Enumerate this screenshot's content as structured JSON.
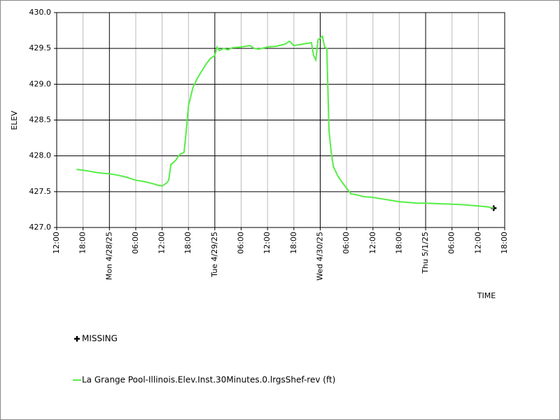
{
  "chart_data": {
    "type": "line",
    "x_label": "TIME",
    "y_label": "ELEV",
    "xlim": [
      "2025-04-27T12:00",
      "2025-05-01T18:00"
    ],
    "xticks": [
      {
        "value": "2025-04-27T12:00",
        "label": "12:00"
      },
      {
        "value": "2025-04-27T18:00",
        "label": "18:00"
      },
      {
        "value": "2025-04-28T00:00",
        "label": "Mon 4/28/25"
      },
      {
        "value": "2025-04-28T06:00",
        "label": "06:00"
      },
      {
        "value": "2025-04-28T12:00",
        "label": "12:00"
      },
      {
        "value": "2025-04-28T18:00",
        "label": "18:00"
      },
      {
        "value": "2025-04-29T00:00",
        "label": "Tue 4/29/25"
      },
      {
        "value": "2025-04-29T06:00",
        "label": "06:00"
      },
      {
        "value": "2025-04-29T12:00",
        "label": "12:00"
      },
      {
        "value": "2025-04-29T18:00",
        "label": "18:00"
      },
      {
        "value": "2025-04-30T00:00",
        "label": "Wed 4/30/25"
      },
      {
        "value": "2025-04-30T06:00",
        "label": "06:00"
      },
      {
        "value": "2025-04-30T12:00",
        "label": "12:00"
      },
      {
        "value": "2025-04-30T18:00",
        "label": "18:00"
      },
      {
        "value": "2025-05-01T00:00",
        "label": "Thu 5/1/25"
      },
      {
        "value": "2025-05-01T06:00",
        "label": "06:00"
      },
      {
        "value": "2025-05-01T12:00",
        "label": "12:00"
      },
      {
        "value": "2025-05-01T18:00",
        "label": "18:00"
      }
    ],
    "ylim": [
      427.0,
      430.0
    ],
    "yticks": [
      {
        "value": 427.0,
        "label": "427.0"
      },
      427.5,
      {
        "value": 428.0,
        "label": "428.0"
      },
      428.5,
      {
        "value": 429.0,
        "label": "429.0"
      },
      429.5,
      {
        "value": 430.0,
        "label": "430.0"
      }
    ],
    "grid": true,
    "series": [
      {
        "name": "MISSING",
        "color": "#000000",
        "marker": "cross",
        "x": [
          "2025-05-01T15:30"
        ],
        "values": [
          427.27
        ]
      },
      {
        "name": "La Grange Pool-Illinois.Elev.Inst.30Minutes.0.lrgsShef-rev (ft)",
        "color": "#55ee44",
        "x": [
          "2025-04-27T16:30",
          "2025-04-27T18:00",
          "2025-04-27T20:00",
          "2025-04-27T22:00",
          "2025-04-28T00:00",
          "2025-04-28T02:00",
          "2025-04-28T04:00",
          "2025-04-28T06:00",
          "2025-04-28T08:00",
          "2025-04-28T10:00",
          "2025-04-28T11:00",
          "2025-04-28T12:00",
          "2025-04-28T13:00",
          "2025-04-28T13:30",
          "2025-04-28T14:00",
          "2025-04-28T15:00",
          "2025-04-28T16:00",
          "2025-04-28T17:00",
          "2025-04-28T17:30",
          "2025-04-28T18:00",
          "2025-04-28T19:00",
          "2025-04-28T20:00",
          "2025-04-28T21:00",
          "2025-04-28T22:00",
          "2025-04-28T23:00",
          "2025-04-29T00:00",
          "2025-04-29T00:30",
          "2025-04-29T01:00",
          "2025-04-29T02:00",
          "2025-04-29T03:00",
          "2025-04-29T04:00",
          "2025-04-29T06:00",
          "2025-04-29T08:00",
          "2025-04-29T09:00",
          "2025-04-29T10:00",
          "2025-04-29T12:00",
          "2025-04-29T14:00",
          "2025-04-29T16:00",
          "2025-04-29T17:00",
          "2025-04-29T18:00",
          "2025-04-29T20:00",
          "2025-04-29T22:00",
          "2025-04-29T22:30",
          "2025-04-29T23:00",
          "2025-04-29T23:30",
          "2025-04-30T00:30",
          "2025-04-30T01:00",
          "2025-04-30T01:30",
          "2025-04-30T02:00",
          "2025-04-30T02:30",
          "2025-04-30T03:00",
          "2025-04-30T04:00",
          "2025-04-30T05:00",
          "2025-04-30T06:00",
          "2025-04-30T07:00",
          "2025-04-30T08:00",
          "2025-04-30T10:00",
          "2025-04-30T12:00",
          "2025-04-30T14:00",
          "2025-04-30T16:00",
          "2025-04-30T18:00",
          "2025-04-30T20:00",
          "2025-04-30T22:00",
          "2025-05-01T00:00",
          "2025-05-01T04:00",
          "2025-05-01T08:00",
          "2025-05-01T12:00",
          "2025-05-01T14:00",
          "2025-05-01T15:30"
        ],
        "values": [
          427.81,
          427.8,
          427.78,
          427.76,
          427.75,
          427.73,
          427.7,
          427.66,
          427.64,
          427.61,
          427.59,
          427.58,
          427.62,
          427.66,
          427.88,
          427.93,
          428.02,
          428.05,
          428.35,
          428.7,
          428.95,
          429.08,
          429.18,
          429.28,
          429.36,
          429.4,
          429.52,
          429.47,
          429.5,
          429.48,
          429.51,
          429.52,
          429.54,
          429.5,
          429.49,
          429.52,
          429.53,
          429.56,
          429.6,
          429.54,
          429.56,
          429.58,
          429.4,
          429.34,
          429.62,
          429.67,
          429.52,
          429.5,
          428.35,
          428.05,
          427.85,
          427.72,
          427.63,
          427.55,
          427.47,
          427.46,
          427.43,
          427.42,
          427.4,
          427.38,
          427.36,
          427.35,
          427.34,
          427.34,
          427.33,
          427.32,
          427.3,
          427.29,
          427.27
        ]
      }
    ]
  }
}
